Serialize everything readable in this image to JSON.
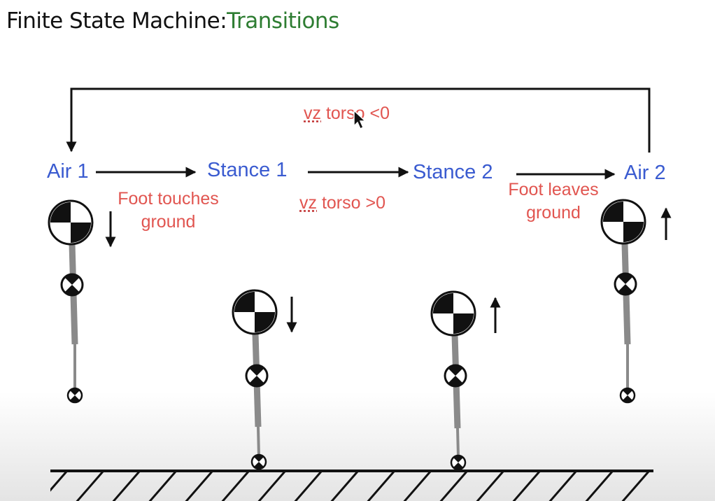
{
  "slide": {
    "title_prefix": "Finite State Machine:",
    "title_accent": "Transitions",
    "accent_color": "#2e7d32"
  },
  "states": {
    "air1": "Air 1",
    "stance1": "Stance 1",
    "stance2": "Stance 2",
    "air2": "Air 2",
    "color": "#3a5bd0"
  },
  "transitions": {
    "air1_to_stance1": [
      "Foot touches",
      "ground"
    ],
    "stance1_to_stance2": {
      "var": "vz",
      "rest": " torso >0"
    },
    "stance2_to_air2": [
      "Foot leaves",
      "ground"
    ],
    "air2_to_air1": {
      "var": "vz",
      "rest": " torso <0"
    },
    "color": "#e15550"
  },
  "robots": [
    {
      "state": "Air 1",
      "velocity_arrow": "down"
    },
    {
      "state": "Stance 1",
      "velocity_arrow": "down"
    },
    {
      "state": "Stance 2",
      "velocity_arrow": "up"
    },
    {
      "state": "Air 2",
      "velocity_arrow": "up"
    }
  ],
  "icons": {
    "com_marker": "center-of-mass-icon",
    "joint_marker": "hip-joint-icon",
    "foot_marker": "foot-icon",
    "ground": "hatched-ground-icon",
    "cursor": "mouse-cursor-icon"
  }
}
